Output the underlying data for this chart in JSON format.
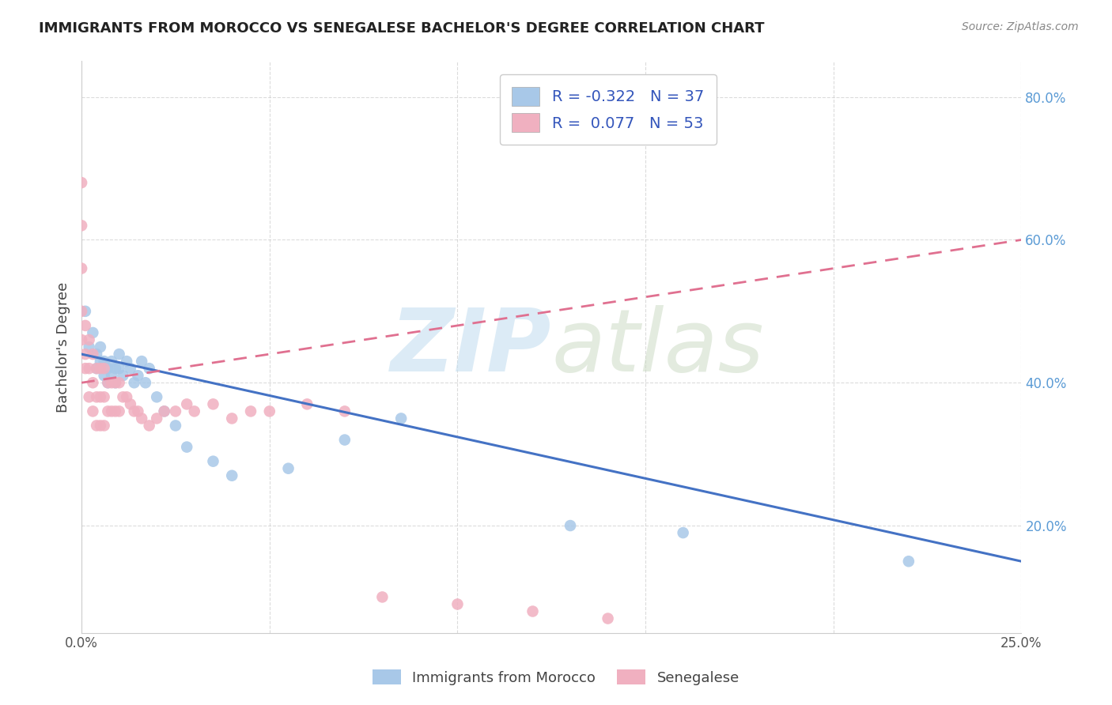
{
  "title": "IMMIGRANTS FROM MOROCCO VS SENEGALESE BACHELOR'S DEGREE CORRELATION CHART",
  "source": "Source: ZipAtlas.com",
  "ylabel": "Bachelor's Degree",
  "xlim": [
    0.0,
    0.25
  ],
  "ylim": [
    0.05,
    0.85
  ],
  "x_ticks": [
    0.0,
    0.05,
    0.1,
    0.15,
    0.2,
    0.25
  ],
  "x_tick_labels": [
    "0.0%",
    "",
    "",
    "",
    "",
    "25.0%"
  ],
  "y_ticks": [
    0.2,
    0.4,
    0.6,
    0.8
  ],
  "y_tick_labels": [
    "20.0%",
    "40.0%",
    "60.0%",
    "80.0%"
  ],
  "R_morocco": -0.322,
  "N_morocco": 37,
  "R_senegal": 0.077,
  "N_senegal": 53,
  "legend_labels": [
    "Immigrants from Morocco",
    "Senegalese"
  ],
  "blue_color": "#a8c8e8",
  "pink_color": "#f0b0c0",
  "blue_line_color": "#4472c4",
  "pink_line_color": "#e07090",
  "morocco_x": [
    0.001,
    0.002,
    0.003,
    0.004,
    0.004,
    0.005,
    0.005,
    0.006,
    0.006,
    0.007,
    0.007,
    0.008,
    0.008,
    0.009,
    0.009,
    0.01,
    0.01,
    0.011,
    0.012,
    0.013,
    0.014,
    0.015,
    0.016,
    0.017,
    0.018,
    0.02,
    0.022,
    0.025,
    0.028,
    0.035,
    0.04,
    0.055,
    0.07,
    0.085,
    0.13,
    0.16,
    0.22
  ],
  "morocco_y": [
    0.5,
    0.45,
    0.47,
    0.44,
    0.42,
    0.45,
    0.43,
    0.43,
    0.41,
    0.42,
    0.4,
    0.43,
    0.41,
    0.42,
    0.4,
    0.42,
    0.44,
    0.41,
    0.43,
    0.42,
    0.4,
    0.41,
    0.43,
    0.4,
    0.42,
    0.38,
    0.36,
    0.34,
    0.31,
    0.29,
    0.27,
    0.28,
    0.32,
    0.35,
    0.2,
    0.19,
    0.15
  ],
  "senegal_x": [
    0.0,
    0.0,
    0.0,
    0.0,
    0.0,
    0.001,
    0.001,
    0.001,
    0.002,
    0.002,
    0.002,
    0.003,
    0.003,
    0.003,
    0.004,
    0.004,
    0.004,
    0.005,
    0.005,
    0.005,
    0.006,
    0.006,
    0.006,
    0.007,
    0.007,
    0.008,
    0.008,
    0.009,
    0.009,
    0.01,
    0.01,
    0.011,
    0.012,
    0.013,
    0.014,
    0.015,
    0.016,
    0.018,
    0.02,
    0.022,
    0.025,
    0.028,
    0.03,
    0.035,
    0.04,
    0.045,
    0.05,
    0.06,
    0.07,
    0.08,
    0.1,
    0.12,
    0.14
  ],
  "senegal_y": [
    0.68,
    0.62,
    0.56,
    0.5,
    0.46,
    0.48,
    0.44,
    0.42,
    0.46,
    0.42,
    0.38,
    0.44,
    0.4,
    0.36,
    0.42,
    0.38,
    0.34,
    0.42,
    0.38,
    0.34,
    0.42,
    0.38,
    0.34,
    0.4,
    0.36,
    0.4,
    0.36,
    0.4,
    0.36,
    0.4,
    0.36,
    0.38,
    0.38,
    0.37,
    0.36,
    0.36,
    0.35,
    0.34,
    0.35,
    0.36,
    0.36,
    0.37,
    0.36,
    0.37,
    0.35,
    0.36,
    0.36,
    0.37,
    0.36,
    0.1,
    0.09,
    0.08,
    0.07
  ]
}
